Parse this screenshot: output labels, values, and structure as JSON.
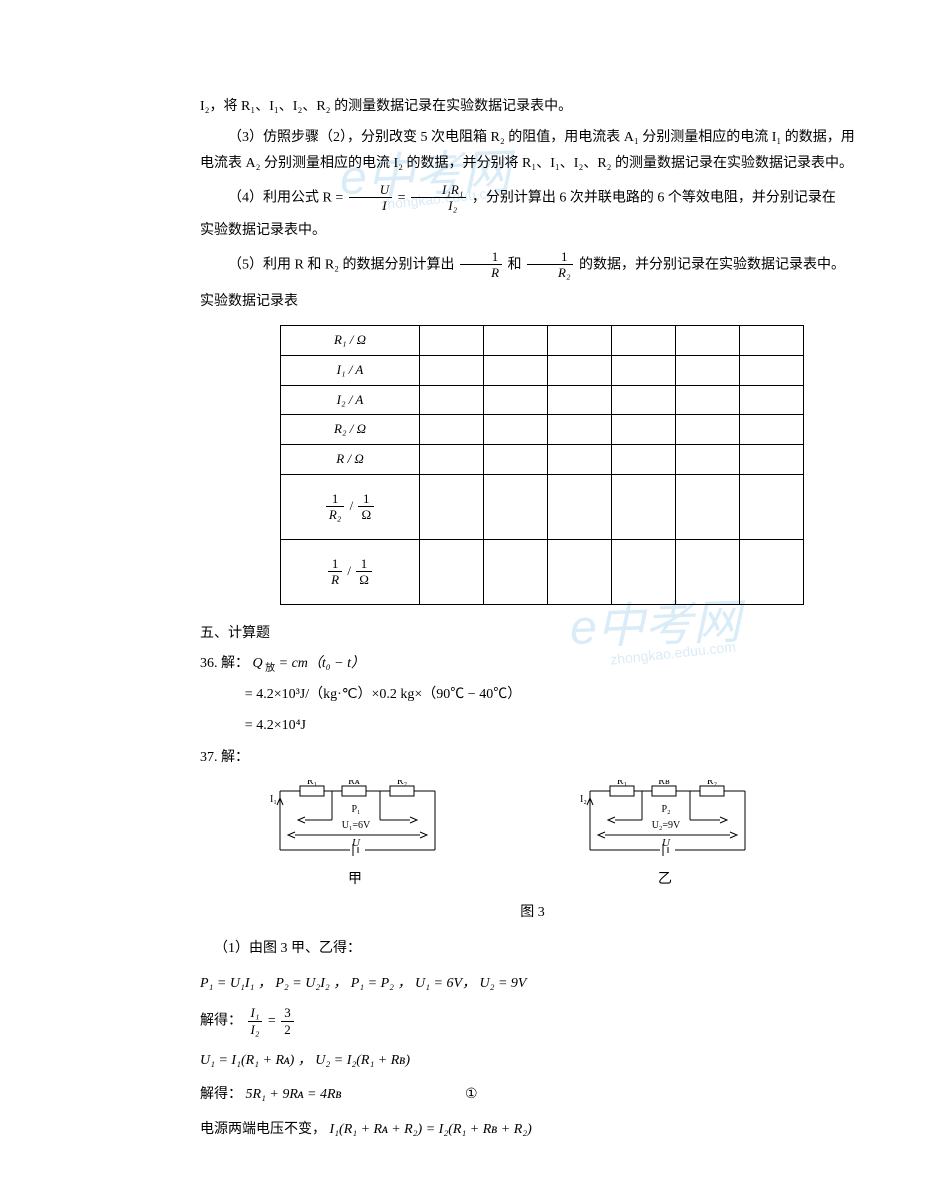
{
  "watermark": {
    "logo": "e中考网",
    "url": "zhongkao.eduu.com"
  },
  "p_top": "I₂，将 R₁、I₁、I₂、R₂ 的测量数据记录在实验数据记录表中。",
  "step3": "（3）仿照步骤（2），分别改变 5 次电阻箱 R₂ 的阻值，用电流表 A₁ 分别测量相应的电流 I₁ 的数据，用电流表 A₂ 分别测量相应的电流 I₂ 的数据，并分别将 R₁、I₁、I₂、R₂ 的测量数据记录在实验数据记录表中。",
  "step4_pre": "（4）利用公式 R = ",
  "step4_frac1_num": "U",
  "step4_frac1_den": "I",
  "step4_eq": " = ",
  "step4_frac2_num": "I₁R₁",
  "step4_frac2_den": "I₂",
  "step4_post": "，分别计算出 6 次并联电路的 6 个等效电阻，并分别记录在",
  "step4_line2": "实验数据记录表中。",
  "step5_pre": "（5）利用 R 和 R₂ 的数据分别计算出 ",
  "step5_frac1_num": "1",
  "step5_frac1_den": "R",
  "step5_mid": " 和 ",
  "step5_frac2_num": "1",
  "step5_frac2_den": "R₂",
  "step5_post": " 的数据，并分别记录在实验数据记录表中。",
  "table_title": "实验数据记录表",
  "table": {
    "rows": [
      "R₁ / Ω",
      "I₁ / A",
      "I₂ / A",
      "R₂ / Ω",
      "R / Ω"
    ],
    "tall_rows": [
      {
        "num": "1",
        "den": "R₂",
        "num2": "1",
        "den2": "Ω"
      },
      {
        "num": "1",
        "den": "R",
        "num2": "1",
        "den2": "Ω"
      }
    ],
    "cols": 6
  },
  "section5": "五、计算题",
  "q36": {
    "label": "36. 解：",
    "line1_a": "Q",
    "line1_a2": " 放",
    "line1_b": " = cm（t₀ − t）",
    "line2": "= 4.2×10³J/（kg·℃）×0.2 kg×（90℃ − 40℃）",
    "line3": "= 4.2×10⁴J"
  },
  "q37": {
    "label": "37. 解：",
    "fig_caption": "图 3",
    "circuit1": {
      "R1": "R₁",
      "RA": "Rᴀ",
      "R2": "R₂",
      "P": "P₁",
      "U": "U₁=6V",
      "Utot": "U",
      "I": "I₁",
      "caption": "甲"
    },
    "circuit2": {
      "R1": "R₁",
      "RB": "Rʙ",
      "R2": "R₂",
      "P": "P₂",
      "U": "U₂=9V",
      "Utot": "U",
      "I": "I₂",
      "caption": "乙"
    },
    "line_intro": "（1）由图 3 甲、乙得：",
    "eq1": "P₁ = U₁I₁ ，  P₂ = U₂I₂ ，  P₁ = P₂ ，  U₁ = 6V，  U₂ = 9V",
    "eq2_pre": "解得：",
    "eq2_frac_num": "I₁",
    "eq2_frac_den": "I₂",
    "eq2_mid": " = ",
    "eq2_frac2_num": "3",
    "eq2_frac2_den": "2",
    "eq3": "U₁ = I₁(R₁ + Rᴀ)   ，    U₂ = I₂(R₁ + Rʙ)",
    "eq4_pre": "解得：      ",
    "eq4": "5R₁ + 9Rᴀ = 4Rʙ",
    "eq4_num": "①",
    "eq5_pre": "电源两端电压不变，",
    "eq5": "I₁(R₁ + Rᴀ + R₂) = I₂(R₁ + Rʙ + R₂)"
  }
}
